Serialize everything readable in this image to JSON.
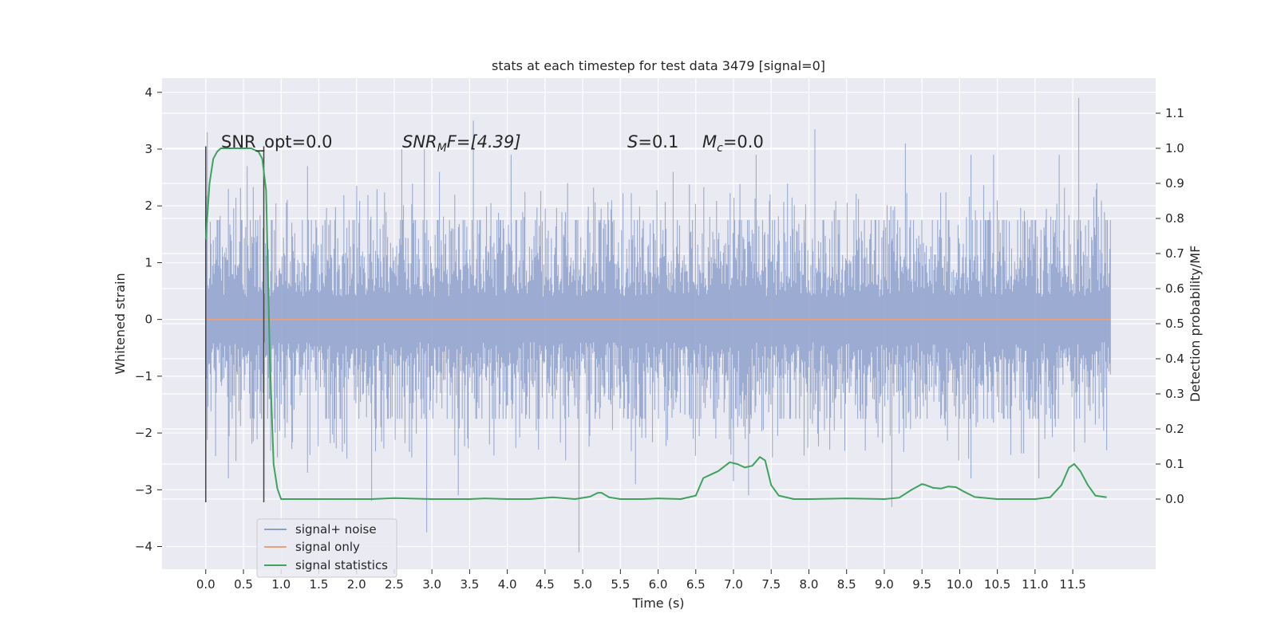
{
  "chart_data": {
    "type": "line",
    "title": "stats at each timestep for test data 3479 [signal=0]",
    "xlabel": "Time (s)",
    "ylabel_left": "Whitened strain",
    "ylabel_right": "Detection probability/MF",
    "xlim": [
      -0.58,
      12.6
    ],
    "ylim_left": [
      -4.4,
      4.25
    ],
    "ylim_right": [
      -0.2,
      1.2
    ],
    "xticks": [
      "0.0",
      "0.5",
      "1.0",
      "1.5",
      "2.0",
      "2.5",
      "3.0",
      "3.5",
      "4.0",
      "4.5",
      "5.0",
      "5.5",
      "6.0",
      "6.5",
      "7.0",
      "7.5",
      "8.0",
      "8.5",
      "9.0",
      "9.5",
      "10.0",
      "10.5",
      "11.0",
      "11.5"
    ],
    "yticks_left": [
      "4",
      "3",
      "2",
      "1",
      "0",
      "−1",
      "−2",
      "−3",
      "−4"
    ],
    "yticks_right": [
      "1.1",
      "1.0",
      "0.9",
      "0.8",
      "0.7",
      "0.6",
      "0.5",
      "0.4",
      "0.3",
      "0.2",
      "0.1",
      "0.0"
    ],
    "grid": true,
    "legend_position": "lower-left",
    "annotations": {
      "snr_opt": "SNR_opt=0.0",
      "snr_mf_main": "SNR",
      "snr_mf_sub": "M",
      "snr_mf_rest": "F=[4.39]",
      "s_main": "S",
      "s_rest": "=0.1",
      "mc_main": "M",
      "mc_sub": "c",
      "mc_rest": "=0.0"
    },
    "vertical_lines_x": [
      0.0,
      0.77
    ],
    "series": [
      {
        "name": "signal+ noise",
        "color": "#8da0cb",
        "x_range": [
          0.0,
          12.0
        ],
        "typical_envelope": [
          -1.7,
          1.7
        ],
        "peaks": [
          {
            "x": 0.02,
            "y": 3.3
          },
          {
            "x": 0.3,
            "y": 2.3
          },
          {
            "x": 0.55,
            "y": 2.7
          },
          {
            "x": 1.35,
            "y": 2.7
          },
          {
            "x": 2.6,
            "y": 3.0
          },
          {
            "x": 2.9,
            "y": 3.0
          },
          {
            "x": 3.1,
            "y": 2.6
          },
          {
            "x": 3.55,
            "y": 3.5
          },
          {
            "x": 4.05,
            "y": 2.9
          },
          {
            "x": 4.8,
            "y": 2.4
          },
          {
            "x": 6.2,
            "y": 2.6
          },
          {
            "x": 7.3,
            "y": 2.9
          },
          {
            "x": 8.08,
            "y": 3.35
          },
          {
            "x": 9.28,
            "y": 3.1
          },
          {
            "x": 10.15,
            "y": 2.9
          },
          {
            "x": 10.45,
            "y": 2.9
          },
          {
            "x": 11.32,
            "y": 2.9
          },
          {
            "x": 11.58,
            "y": 3.9
          },
          {
            "x": 11.82,
            "y": 2.4
          }
        ],
        "troughs": [
          {
            "x": 0.3,
            "y": -2.8
          },
          {
            "x": 1.35,
            "y": -2.7
          },
          {
            "x": 2.2,
            "y": -3.2
          },
          {
            "x": 2.93,
            "y": -3.75
          },
          {
            "x": 3.35,
            "y": -3.1
          },
          {
            "x": 4.95,
            "y": -4.1
          },
          {
            "x": 5.7,
            "y": -2.9
          },
          {
            "x": 7.0,
            "y": -2.85
          },
          {
            "x": 7.2,
            "y": -3.1
          },
          {
            "x": 9.1,
            "y": -3.3
          },
          {
            "x": 10.15,
            "y": -2.8
          },
          {
            "x": 11.05,
            "y": -2.8
          },
          {
            "x": 11.95,
            "y": -2.3
          }
        ]
      },
      {
        "name": "signal only",
        "color": "#e8a27f",
        "x": [
          0.0,
          12.0
        ],
        "y": [
          0.0,
          0.0
        ]
      },
      {
        "name": "signal statistics",
        "color": "#3da35d",
        "axis": "right",
        "x": [
          0.0,
          0.05,
          0.1,
          0.15,
          0.2,
          0.3,
          0.4,
          0.5,
          0.6,
          0.7,
          0.75,
          0.8,
          0.85,
          0.9,
          0.95,
          1.0,
          1.5,
          2.0,
          2.2,
          2.5,
          3.0,
          3.5,
          3.7,
          4.0,
          4.3,
          4.6,
          4.9,
          5.1,
          5.2,
          5.25,
          5.35,
          5.5,
          5.8,
          6.0,
          6.3,
          6.5,
          6.6,
          6.8,
          6.95,
          7.05,
          7.15,
          7.25,
          7.35,
          7.42,
          7.5,
          7.6,
          7.8,
          8.0,
          8.5,
          8.8,
          9.0,
          9.2,
          9.35,
          9.5,
          9.55,
          9.65,
          9.75,
          9.85,
          9.95,
          10.05,
          10.2,
          10.5,
          11.0,
          11.2,
          11.35,
          11.45,
          11.52,
          11.6,
          11.7,
          11.8,
          11.95
        ],
        "y": [
          0.74,
          0.9,
          0.97,
          0.99,
          1.0,
          1.0,
          1.0,
          1.0,
          1.0,
          0.99,
          0.97,
          0.88,
          0.4,
          0.1,
          0.03,
          0.0,
          0.0,
          0.0,
          0.0,
          0.003,
          0.0,
          0.0,
          0.002,
          0.0,
          0.0,
          0.005,
          0.0,
          0.007,
          0.018,
          0.018,
          0.005,
          0.0,
          0.0,
          0.002,
          0.0,
          0.01,
          0.06,
          0.08,
          0.105,
          0.1,
          0.09,
          0.095,
          0.12,
          0.11,
          0.04,
          0.01,
          0.0,
          0.0,
          0.002,
          0.001,
          0.0,
          0.004,
          0.025,
          0.043,
          0.04,
          0.032,
          0.03,
          0.036,
          0.034,
          0.022,
          0.006,
          0.0,
          0.0,
          0.005,
          0.04,
          0.09,
          0.1,
          0.08,
          0.04,
          0.01,
          0.005
        ]
      }
    ]
  }
}
